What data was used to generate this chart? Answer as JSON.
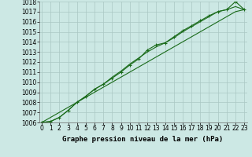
{
  "x": [
    0,
    1,
    2,
    3,
    4,
    5,
    6,
    7,
    8,
    9,
    10,
    11,
    12,
    13,
    14,
    15,
    16,
    17,
    18,
    19,
    20,
    21,
    22,
    23
  ],
  "line_straight": [
    1006.0,
    1006.5,
    1007.0,
    1007.5,
    1008.0,
    1008.5,
    1009.0,
    1009.5,
    1010.0,
    1010.5,
    1011.0,
    1011.5,
    1012.0,
    1012.5,
    1013.0,
    1013.5,
    1014.0,
    1014.5,
    1015.0,
    1015.5,
    1016.0,
    1016.5,
    1017.0,
    1017.2
  ],
  "line_marked": [
    1006.0,
    1006.1,
    1006.5,
    1007.2,
    1008.0,
    1008.6,
    1009.3,
    1009.8,
    1010.4,
    1011.0,
    1011.7,
    1012.3,
    1013.2,
    1013.7,
    1013.9,
    1014.5,
    1015.1,
    1015.6,
    1016.1,
    1016.6,
    1017.0,
    1017.2,
    1018.0,
    1017.2
  ],
  "line_third": [
    1006.0,
    1006.1,
    1006.5,
    1007.2,
    1008.0,
    1008.6,
    1009.3,
    1009.8,
    1010.5,
    1011.1,
    1011.8,
    1012.4,
    1013.0,
    1013.5,
    1013.9,
    1014.4,
    1015.0,
    1015.5,
    1016.0,
    1016.5,
    1017.0,
    1017.2,
    1017.5,
    1017.2
  ],
  "line_color": "#1a6b1a",
  "bg_color": "#cce8e4",
  "grid_major_color": "#aac8c4",
  "grid_minor_color": "#bbdad6",
  "title": "Graphe pression niveau de la mer (hPa)",
  "ylim": [
    1006,
    1018
  ],
  "yticks": [
    1006,
    1007,
    1008,
    1009,
    1010,
    1011,
    1012,
    1013,
    1014,
    1015,
    1016,
    1017,
    1018
  ],
  "xticks": [
    0,
    1,
    2,
    3,
    4,
    5,
    6,
    7,
    8,
    9,
    10,
    11,
    12,
    13,
    14,
    15,
    16,
    17,
    18,
    19,
    20,
    21,
    22,
    23
  ],
  "tick_fontsize": 5.5,
  "title_fontsize": 6.5,
  "marker": "+"
}
